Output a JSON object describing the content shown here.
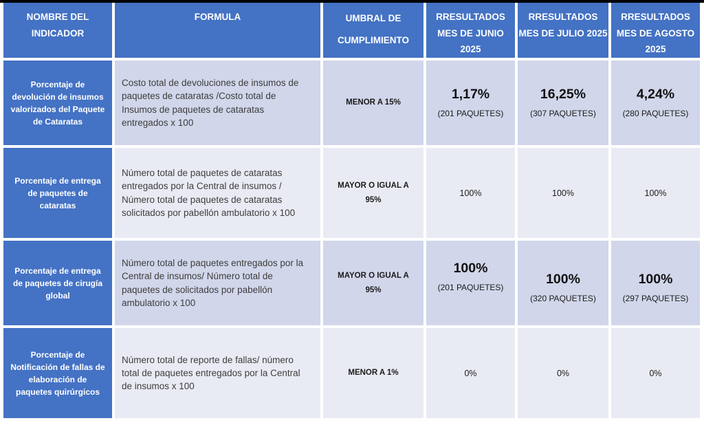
{
  "colors": {
    "header_blue": "#4472C4",
    "row_dark_lavender": "#D1D6EA",
    "row_light_lavender": "#E9EBF4",
    "top_strip_black": "#000000"
  },
  "header": {
    "indicator": "NOMBRE DEL INDICADOR",
    "formula": "FORMULA",
    "threshold": "UMBRAL DE CUMPLIMIENTO",
    "junio": "RRESULTADOS MES DE JUNIO 2025",
    "julio": "RRESULTADOS MES DE JULIO 2025",
    "agosto": "RRESULTADOS MES DE AGOSTO 2025"
  },
  "rows": [
    {
      "indicator": "Porcentaje de devolución de insumos valorizados del Paquete de Cataratas",
      "formula": "Costo total de devoluciones de insumos de paquetes de cataratas /Costo total de Insumos de paquetes de cataratas entregados x 100",
      "threshold": "MENOR A 15%",
      "results": [
        {
          "value": "1,17%",
          "detail": "(201 PAQUETES)"
        },
        {
          "value": "16,25%",
          "detail": "(307 PAQUETES)"
        },
        {
          "value": "4,24%",
          "detail": "(280 PAQUETES)"
        }
      ]
    },
    {
      "indicator": "Porcentaje de entrega de paquetes de cataratas",
      "formula": "Número total de paquetes de cataratas entregados por la Central de insumos / Número total de paquetes de cataratas solicitados por pabellón ambulatorio x 100",
      "threshold": "MAYOR O IGUAL A 95%",
      "results": [
        {
          "value": "100%"
        },
        {
          "value": "100%"
        },
        {
          "value": "100%"
        }
      ]
    },
    {
      "indicator": "Porcentaje de entrega de paquetes de cirugía global",
      "formula": "Número total de paquetes entregados por la Central de insumos/ Número total de paquetes de solicitados por pabellón ambulatorio x 100",
      "threshold": "MAYOR O IGUAL A 95%",
      "results": [
        {
          "value": "100%",
          "detail": "(201 PAQUETES)"
        },
        {
          "value": "100%",
          "detail": "(320 PAQUETES)"
        },
        {
          "value": "100%",
          "detail": "(297 PAQUETES)"
        }
      ]
    },
    {
      "indicator": "Porcentaje de Notificación de fallas de elaboración de paquetes quirúrgicos",
      "formula": "Número total de reporte de fallas/ número total de paquetes entregados por la Central de insumos x 100",
      "threshold": "MENOR A 1%",
      "results": [
        {
          "value": "0%"
        },
        {
          "value": "0%"
        },
        {
          "value": "0%"
        }
      ]
    }
  ]
}
